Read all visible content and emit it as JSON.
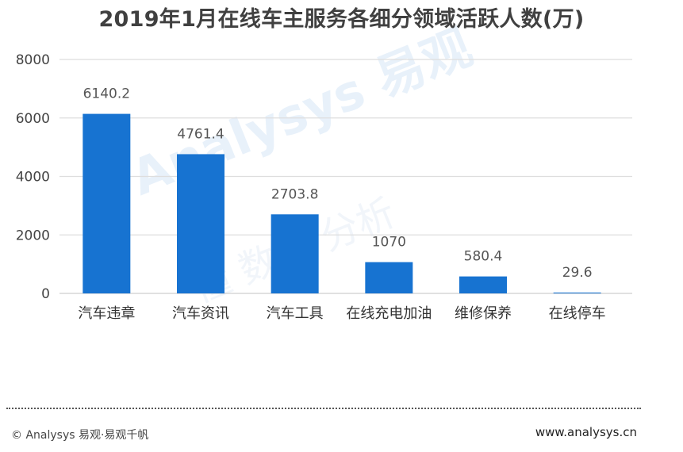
{
  "chart_data": {
    "type": "bar",
    "title": "2019年1月在线车主服务各细分领域活跃人数(万)",
    "categories": [
      "汽车违章",
      "汽车资讯",
      "汽车工具",
      "在线充电加油",
      "维修保养",
      "在线停车"
    ],
    "values": [
      6140.2,
      4761.4,
      2703.8,
      1070,
      580.4,
      29.6
    ],
    "data_labels": [
      "6140.2",
      "4761.4",
      "2703.8",
      "1070",
      "580.4",
      "29.6"
    ],
    "ylim": [
      0,
      8000
    ],
    "yticks": [
      0,
      2000,
      4000,
      6000,
      8000
    ],
    "grid": true,
    "bar_color": "#1773d1"
  },
  "watermark": {
    "brand": "Analysys 易观",
    "slogan": "懂 数据 分析"
  },
  "footer": {
    "left": "© Analysys 易观·易观千帆",
    "right": "www.analysys.cn"
  }
}
